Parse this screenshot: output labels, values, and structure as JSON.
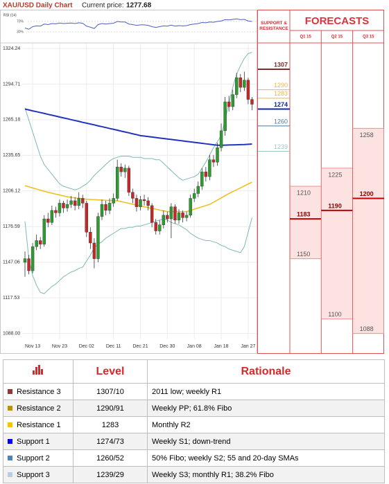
{
  "header": {
    "title": "XAU/USD Daily Chart",
    "current_price_label": "Current price:",
    "current_price": 1277.68
  },
  "chart_data": {
    "type": "candlestick",
    "categories": [
      null,
      null,
      "Nov 13",
      null,
      null,
      null,
      null,
      null,
      null,
      "Nov 23",
      null,
      null,
      null,
      null,
      null,
      null,
      "Dec 02",
      null,
      null,
      null,
      null,
      null,
      null,
      "Dec 11",
      null,
      null,
      null,
      null,
      null,
      null,
      "Dec 21",
      null,
      null,
      null,
      null,
      null,
      null,
      "Dec 30",
      null,
      null,
      null,
      null,
      null,
      null,
      "Jan 08",
      null,
      null,
      null,
      null,
      null,
      null,
      "Jan 18",
      null,
      null,
      null,
      null,
      null,
      null,
      "Jan 27",
      null
    ],
    "open": [
      1147,
      1150,
      1140,
      1160,
      1165,
      1162,
      1183,
      1180,
      1190,
      1188,
      1196,
      1192,
      1195,
      1198,
      1194,
      1200,
      1196,
      1172,
      1163,
      1150,
      1185,
      1195,
      1190,
      1196,
      1200,
      1226,
      1222,
      1225,
      1205,
      1200,
      1193,
      1199,
      1198,
      1194,
      1180,
      1173,
      1178,
      1186,
      1183,
      1193,
      1182,
      1188,
      1184,
      1186,
      1200,
      1204,
      1210,
      1222,
      1218,
      1232,
      1230,
      1242,
      1256,
      1280,
      1276,
      1286,
      1300,
      1292,
      1298,
      1282
    ],
    "high": [
      1156,
      1153,
      1163,
      1170,
      1168,
      1186,
      1188,
      1194,
      1193,
      1199,
      1198,
      1199,
      1202,
      1201,
      1205,
      1203,
      1198,
      1176,
      1167,
      1188,
      1199,
      1198,
      1200,
      1204,
      1232,
      1229,
      1228,
      1227,
      1208,
      1203,
      1202,
      1203,
      1201,
      1196,
      1183,
      1182,
      1190,
      1189,
      1196,
      1195,
      1191,
      1190,
      1189,
      1203,
      1208,
      1214,
      1225,
      1226,
      1236,
      1236,
      1246,
      1262,
      1284,
      1285,
      1290,
      1304,
      1303,
      1305,
      1300,
      1284
    ],
    "low": [
      1135,
      1137,
      1138,
      1157,
      1158,
      1160,
      1176,
      1178,
      1184,
      1185,
      1188,
      1189,
      1192,
      1190,
      1191,
      1192,
      1168,
      1158,
      1142,
      1147,
      1182,
      1186,
      1187,
      1193,
      1198,
      1218,
      1217,
      1202,
      1196,
      1189,
      1190,
      1194,
      1190,
      1176,
      1170,
      1170,
      1175,
      1180,
      1167,
      1179,
      1179,
      1180,
      1181,
      1184,
      1197,
      1201,
      1207,
      1214,
      1215,
      1226,
      1227,
      1239,
      1252,
      1272,
      1273,
      1283,
      1288,
      1289,
      1278,
      1273
    ],
    "close": [
      1150,
      1140,
      1160,
      1165,
      1162,
      1183,
      1180,
      1190,
      1188,
      1196,
      1192,
      1195,
      1198,
      1194,
      1200,
      1196,
      1172,
      1163,
      1150,
      1185,
      1195,
      1190,
      1196,
      1200,
      1226,
      1222,
      1225,
      1205,
      1200,
      1193,
      1199,
      1198,
      1194,
      1180,
      1173,
      1178,
      1186,
      1183,
      1193,
      1182,
      1188,
      1184,
      1186,
      1200,
      1204,
      1210,
      1222,
      1218,
      1232,
      1230,
      1242,
      1256,
      1280,
      1276,
      1286,
      1300,
      1292,
      1298,
      1282,
      1278
    ],
    "up_color": "#2e9b2e",
    "down_color": "#c62828",
    "lines": [
      {
        "color": "#7fb8b8",
        "values": [
          1275,
          1265,
          1255,
          1245,
          1235,
          1228,
          1224,
          1220,
          1216,
          1212,
          1210,
          1209,
          1208,
          1207,
          1208,
          1210,
          1212,
          1215,
          1219,
          1222,
          1225,
          1228,
          1231,
          1233,
          1234,
          1235,
          1235,
          1235,
          1234,
          1234,
          1234,
          1233,
          1233,
          1233,
          1232,
          1232,
          1229,
          1226,
          1223,
          1220,
          1217,
          1215,
          1216,
          1217,
          1218,
          1220,
          1225,
          1230,
          1236,
          1242,
          1247,
          1252,
          1265,
          1279,
          1292,
          1303,
          1310,
          1316,
          1320,
          1321
        ]
      },
      {
        "color": "#7fb8b8",
        "values": [
          1181,
          1150,
          1136,
          1128,
          1122,
          1121,
          1124,
          1127,
          1129,
          1132,
          1135,
          1137,
          1139,
          1140,
          1142,
          1143,
          1148,
          1153,
          1159,
          1162,
          1164,
          1167,
          1169,
          1171,
          1173,
          1175,
          1175,
          1176,
          1176,
          1177,
          1177,
          1178,
          1179,
          1180,
          1181,
          1182,
          1183,
          1182,
          1180,
          1179,
          1178,
          1176,
          1174,
          1171,
          1169,
          1167,
          1166,
          1165,
          1165,
          1164,
          1163,
          1161,
          1160,
          1158,
          1157,
          1156,
          1155,
          1160,
          1172,
          1184
        ]
      },
      {
        "color": "#f0c020",
        "values": [
          1210.5,
          1209.6,
          1208.6,
          1207.7,
          1206.8,
          1205.9,
          1205,
          1204.3,
          1203.5,
          1202.8,
          1202,
          1201.3,
          1200.8,
          1200.4,
          1200,
          1199.6,
          1199.3,
          1199,
          1198.9,
          1198.7,
          1198.6,
          1198.4,
          1198.3,
          1198.1,
          1198,
          1197.3,
          1196.6,
          1195.9,
          1195.1,
          1194.4,
          1193.7,
          1193,
          1192.3,
          1191.7,
          1191,
          1190.3,
          1189.7,
          1189,
          1189,
          1189,
          1189,
          1189,
          1189,
          1190,
          1191,
          1192,
          1193,
          1194,
          1195,
          1196.8,
          1198.6,
          1200.4,
          1202.2,
          1204,
          1205.6,
          1207.1,
          1208.7,
          1210.3,
          1211.9,
          1213.4
        ]
      },
      {
        "color": "#2233bb",
        "values": [
          1274,
          1273.3,
          1272.5,
          1271.8,
          1271.1,
          1270.4,
          1269.6,
          1268.9,
          1268.2,
          1267.4,
          1266.7,
          1266,
          1265.2,
          1264.5,
          1263.8,
          1263,
          1262.3,
          1261.6,
          1260.9,
          1260.1,
          1259.4,
          1258.7,
          1257.9,
          1257.2,
          1256.5,
          1255.7,
          1255,
          1254.3,
          1253.5,
          1252.8,
          1252,
          1251.6,
          1251.2,
          1250.8,
          1250.4,
          1250,
          1249.6,
          1249.2,
          1248.8,
          1248.4,
          1248,
          1247.6,
          1247.2,
          1246.8,
          1246.4,
          1246,
          1245.6,
          1245.2,
          1244.8,
          1244.4,
          1244,
          1244,
          1244.1,
          1244.2,
          1244.3,
          1244.4,
          1244.5,
          1244.6,
          1244.8,
          1245
        ]
      }
    ],
    "ylim": [
      1083.2,
      1328.8
    ],
    "yticks": [
      1324.24,
      1294.71,
      1265.18,
      1235.65,
      1206.12,
      1176.59,
      1147.06,
      1117.53,
      {
        "value": 1088,
        "label": "1088.00"
      }
    ],
    "grid": true,
    "rsi": {
      "label": "RSI (14)",
      "color": "#4a5fc1",
      "ylim": [
        0,
        100
      ],
      "yticks": [
        {
          "value": 70,
          "label": "70%"
        },
        {
          "value": 30,
          "label": "30%"
        }
      ],
      "values": [
        45,
        40,
        50,
        53,
        52,
        60,
        58,
        62,
        61,
        64,
        62,
        63,
        64,
        62,
        65,
        63,
        52,
        48,
        43,
        58,
        62,
        60,
        62,
        63,
        70,
        68,
        68,
        60,
        58,
        55,
        57,
        57,
        55,
        50,
        47,
        50,
        53,
        52,
        56,
        52,
        54,
        53,
        54,
        58,
        60,
        62,
        66,
        65,
        68,
        67,
        70,
        72,
        77,
        76,
        78,
        80,
        77,
        78,
        72,
        70
      ]
    },
    "levels": [
      {
        "value": 1307,
        "color": "#7b2c2c",
        "bold": true
      },
      {
        "value": 1290,
        "color": "#e8b84a",
        "bold": false
      },
      {
        "value": 1283,
        "color": "#e8b84a",
        "bold": false
      },
      {
        "value": 1274,
        "color": "#1020b0",
        "bold": true
      },
      {
        "value": 1260,
        "color": "#3c78b4",
        "bold": false
      },
      {
        "value": 1239,
        "color": "#9cc8c8",
        "bold": false
      }
    ]
  },
  "forecasts": {
    "title": "FORECASTS",
    "sr_label": "SUPPORT & RESISTANCE",
    "columns": [
      {
        "name": "Q1 15",
        "high": 1210,
        "mid": 1183,
        "low": 1150
      },
      {
        "name": "Q2 15",
        "high": 1225,
        "mid": 1190,
        "low": 1100
      },
      {
        "name": "Q3 15",
        "high": 1258,
        "mid": 1200,
        "low": 1088
      }
    ]
  },
  "table": {
    "header": [
      "Level",
      "Rationale"
    ],
    "rows": [
      {
        "name": "Resistance 3",
        "level": "1307/10",
        "rationale": "2011 low; weekly R1",
        "color": "#943634"
      },
      {
        "name": "Resistance 2",
        "level": "1290/91",
        "rationale": "Weekly PP; 61.8% Fibo",
        "color": "#c09000"
      },
      {
        "name": "Resistance 1",
        "level": "1283",
        "rationale": "Monthly R2",
        "color": "#ffc000"
      },
      {
        "name": "Support 1",
        "level": "1274/73",
        "rationale": "Weekly S1; down-trend",
        "color": "#0000ff"
      },
      {
        "name": "Support 2",
        "level": "1260/52",
        "rationale": "50% Fibo; weekly S2; 55 and 20-day SMAs",
        "color": "#4f81bd"
      },
      {
        "name": "Support 3",
        "level": "1239/29",
        "rationale": "Weekly S3; monthly R1; 38.2% Fibo",
        "color": "#b8cce4"
      }
    ]
  }
}
